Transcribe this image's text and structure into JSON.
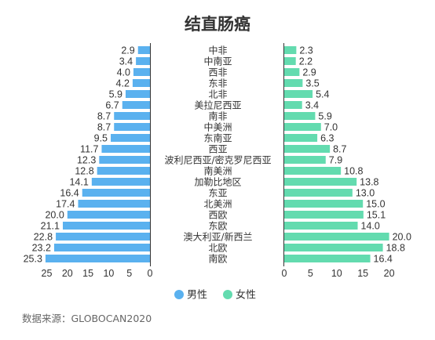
{
  "chart_data": {
    "type": "bar",
    "title": "结直肠癌",
    "categories": [
      "中非",
      "中南亚",
      "西非",
      "东非",
      "北非",
      "美拉尼西亚",
      "南非",
      "中美洲",
      "东南亚",
      "西亚",
      "波利尼西亚/密克罗尼西亚",
      "南美洲",
      "加勒比地区",
      "东亚",
      "北美洲",
      "西欧",
      "东欧",
      "澳大利亚/新西兰",
      "北欧",
      "南欧"
    ],
    "series": [
      {
        "name": "男性",
        "color": "#5AB1EF",
        "values": [
          2.9,
          3.4,
          4.0,
          4.2,
          5.9,
          6.7,
          8.7,
          8.7,
          9.5,
          11.7,
          12.3,
          12.8,
          14.1,
          16.4,
          17.4,
          20.0,
          21.1,
          22.8,
          23.2,
          25.3
        ]
      },
      {
        "name": "女性",
        "color": "#63DBAF",
        "values": [
          2.3,
          2.2,
          2.9,
          3.5,
          5.4,
          3.4,
          5.9,
          7.0,
          6.3,
          8.7,
          7.9,
          10.8,
          13.8,
          13.0,
          15.0,
          15.1,
          14.0,
          20.0,
          18.8,
          16.4
        ]
      }
    ],
    "xaxis_left": {
      "ticks": [
        25,
        20,
        15,
        10,
        5,
        0
      ],
      "lim": [
        0,
        25
      ]
    },
    "xaxis_right": {
      "ticks": [
        0,
        5,
        10,
        15,
        20
      ],
      "lim": [
        0,
        20
      ]
    },
    "legend_position": "bottom",
    "grid": false
  },
  "source": "数据来源：GLOBOCAN2020"
}
